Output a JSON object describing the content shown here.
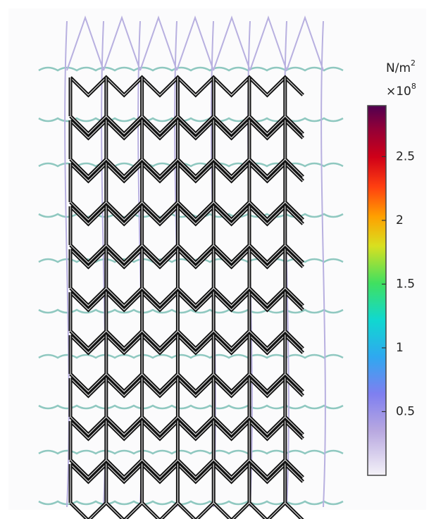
{
  "colorbar": {
    "unit": "N/m",
    "unit_exponent": "2",
    "multiplier": "×10",
    "multiplier_exponent": "8",
    "range": [
      0,
      2.9
    ],
    "ticks": [
      0.5,
      1,
      1.5,
      2,
      2.5
    ]
  }
}
